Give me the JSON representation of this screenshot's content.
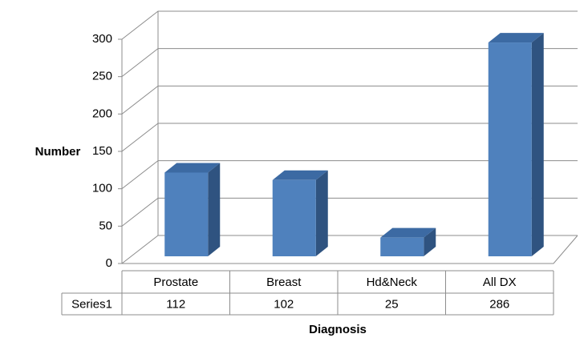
{
  "chart_data": {
    "type": "bar",
    "categories": [
      "Prostate",
      "Breast",
      "Hd&Neck",
      "All DX"
    ],
    "series": [
      {
        "name": "Series1",
        "color": "#4f81bd",
        "values": [
          112,
          102,
          25,
          286
        ]
      }
    ],
    "ylim": [
      0,
      300
    ],
    "yticks": [
      0,
      50,
      100,
      150,
      200,
      250,
      300
    ],
    "grid": true,
    "y_label": "Number",
    "x_label": "Diagnosis"
  }
}
